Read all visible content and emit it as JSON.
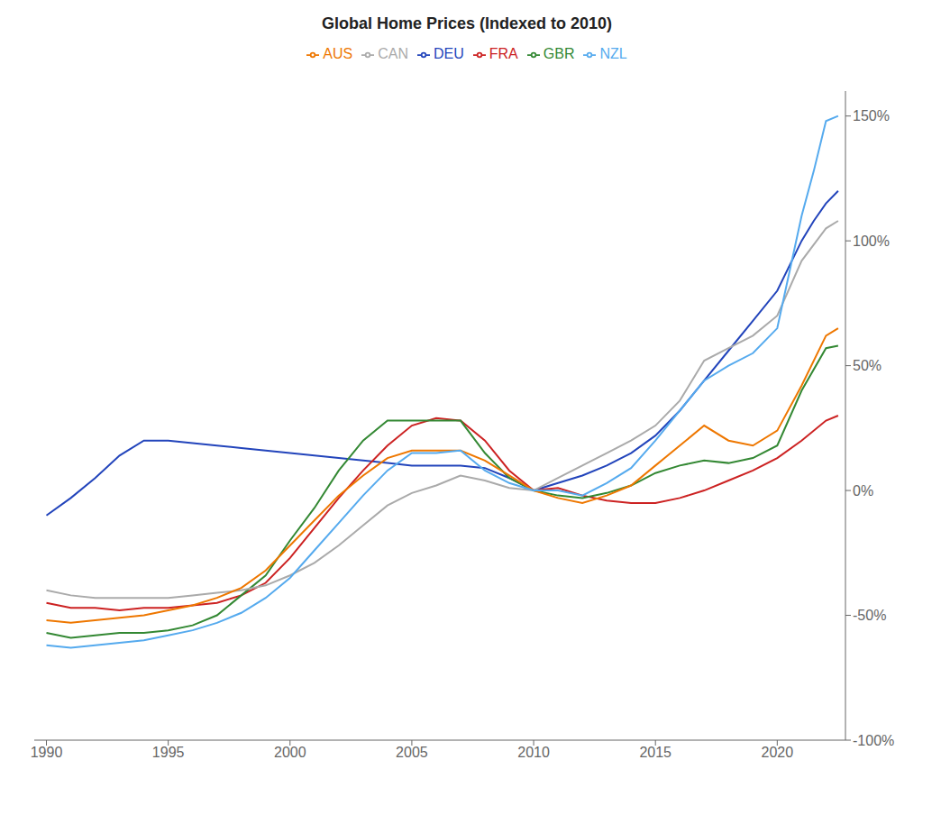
{
  "chart_data": {
    "type": "line",
    "title": "Global Home Prices (Indexed to 2010)",
    "xlim": [
      1989.5,
      2022.8
    ],
    "xticks": [
      1990,
      1995,
      2000,
      2005,
      2010,
      2015,
      2020
    ],
    "ylim": [
      -100,
      160
    ],
    "yticks": [
      {
        "value": -100,
        "label": "-100%"
      },
      {
        "value": -50,
        "label": "-50%"
      },
      {
        "value": 0,
        "label": "0%"
      },
      {
        "value": 50,
        "label": "50%"
      },
      {
        "value": 100,
        "label": "100%"
      },
      {
        "value": 150,
        "label": "150%"
      }
    ],
    "legend": "top",
    "series": [
      {
        "name": "DEU",
        "color": "#2244bb",
        "x": [
          1990,
          1991,
          1992,
          1993,
          1994,
          1995,
          1996,
          1997,
          1998,
          1999,
          2000,
          2001,
          2002,
          2003,
          2004,
          2005,
          2006,
          2007,
          2008,
          2009,
          2010,
          2011,
          2012,
          2013,
          2014,
          2015,
          2016,
          2017,
          2018,
          2019,
          2020,
          2021,
          2021.5,
          2022,
          2022.5
        ],
        "values": [
          -10,
          -3,
          5,
          14,
          20,
          20,
          19,
          18,
          17,
          16,
          15,
          14,
          13,
          12,
          11,
          10,
          10,
          10,
          9,
          5,
          0,
          3,
          6,
          10,
          15,
          22,
          32,
          44,
          56,
          68,
          80,
          100,
          108,
          115,
          120
        ]
      },
      {
        "name": "FRA",
        "color": "#cc2222",
        "x": [
          1990,
          1991,
          1992,
          1993,
          1994,
          1995,
          1996,
          1997,
          1998,
          1999,
          2000,
          2001,
          2002,
          2003,
          2004,
          2005,
          2006,
          2007,
          2008,
          2009,
          2010,
          2011,
          2012,
          2013,
          2014,
          2015,
          2016,
          2017,
          2018,
          2019,
          2020,
          2021,
          2022,
          2022.5
        ],
        "values": [
          -45,
          -47,
          -47,
          -48,
          -47,
          -47,
          -46,
          -45,
          -42,
          -37,
          -27,
          -15,
          -3,
          8,
          18,
          26,
          29,
          28,
          20,
          8,
          0,
          1,
          -2,
          -4,
          -5,
          -5,
          -3,
          0,
          4,
          8,
          13,
          20,
          28,
          30
        ]
      },
      {
        "name": "GBR",
        "color": "#338833",
        "x": [
          1990,
          1991,
          1992,
          1993,
          1994,
          1995,
          1996,
          1997,
          1998,
          1999,
          2000,
          2001,
          2002,
          2003,
          2004,
          2005,
          2006,
          2007,
          2008,
          2009,
          2010,
          2011,
          2012,
          2013,
          2014,
          2015,
          2016,
          2017,
          2018,
          2019,
          2020,
          2021,
          2022,
          2022.5
        ],
        "values": [
          -57,
          -59,
          -58,
          -57,
          -57,
          -56,
          -54,
          -50,
          -42,
          -34,
          -20,
          -7,
          8,
          20,
          28,
          28,
          28,
          28,
          15,
          5,
          0,
          -2,
          -3,
          -1,
          2,
          7,
          10,
          12,
          11,
          13,
          18,
          40,
          57,
          58
        ]
      },
      {
        "name": "CAN",
        "color": "#aaaaaa",
        "x": [
          1990,
          1991,
          1992,
          1993,
          1994,
          1995,
          1996,
          1997,
          1998,
          1999,
          2000,
          2001,
          2002,
          2003,
          2004,
          2005,
          2006,
          2007,
          2008,
          2009,
          2010,
          2011,
          2012,
          2013,
          2014,
          2015,
          2016,
          2017,
          2018,
          2019,
          2020,
          2021,
          2022,
          2022.5
        ],
        "values": [
          -40,
          -42,
          -43,
          -43,
          -43,
          -43,
          -42,
          -41,
          -40,
          -38,
          -34,
          -29,
          -22,
          -14,
          -6,
          -1,
          2,
          6,
          4,
          1,
          0,
          5,
          10,
          15,
          20,
          26,
          36,
          52,
          57,
          62,
          70,
          92,
          105,
          108
        ]
      },
      {
        "name": "AUS",
        "color": "#ee7700",
        "x": [
          1990,
          1991,
          1992,
          1993,
          1994,
          1995,
          1996,
          1997,
          1998,
          1999,
          2000,
          2001,
          2002,
          2003,
          2004,
          2005,
          2006,
          2007,
          2008,
          2009,
          2010,
          2011,
          2012,
          2013,
          2014,
          2015,
          2016,
          2017,
          2018,
          2019,
          2020,
          2021,
          2022,
          2022.5
        ],
        "values": [
          -52,
          -53,
          -52,
          -51,
          -50,
          -48,
          -46,
          -43,
          -39,
          -32,
          -22,
          -12,
          -2,
          6,
          13,
          16,
          16,
          16,
          12,
          6,
          0,
          -3,
          -5,
          -2,
          2,
          10,
          18,
          26,
          20,
          18,
          24,
          42,
          62,
          65
        ]
      },
      {
        "name": "NZL",
        "color": "#55aaee",
        "x": [
          1990,
          1991,
          1992,
          1993,
          1994,
          1995,
          1996,
          1997,
          1998,
          1999,
          2000,
          2001,
          2002,
          2003,
          2004,
          2005,
          2006,
          2007,
          2008,
          2009,
          2010,
          2011,
          2012,
          2013,
          2014,
          2015,
          2016,
          2017,
          2018,
          2019,
          2020,
          2021,
          2021.5,
          2022,
          2022.5
        ],
        "values": [
          -62,
          -63,
          -62,
          -61,
          -60,
          -58,
          -56,
          -53,
          -49,
          -43,
          -35,
          -24,
          -13,
          -2,
          8,
          15,
          15,
          16,
          8,
          3,
          0,
          0,
          -2,
          3,
          9,
          20,
          32,
          44,
          50,
          55,
          65,
          110,
          128,
          148,
          150
        ]
      }
    ]
  }
}
